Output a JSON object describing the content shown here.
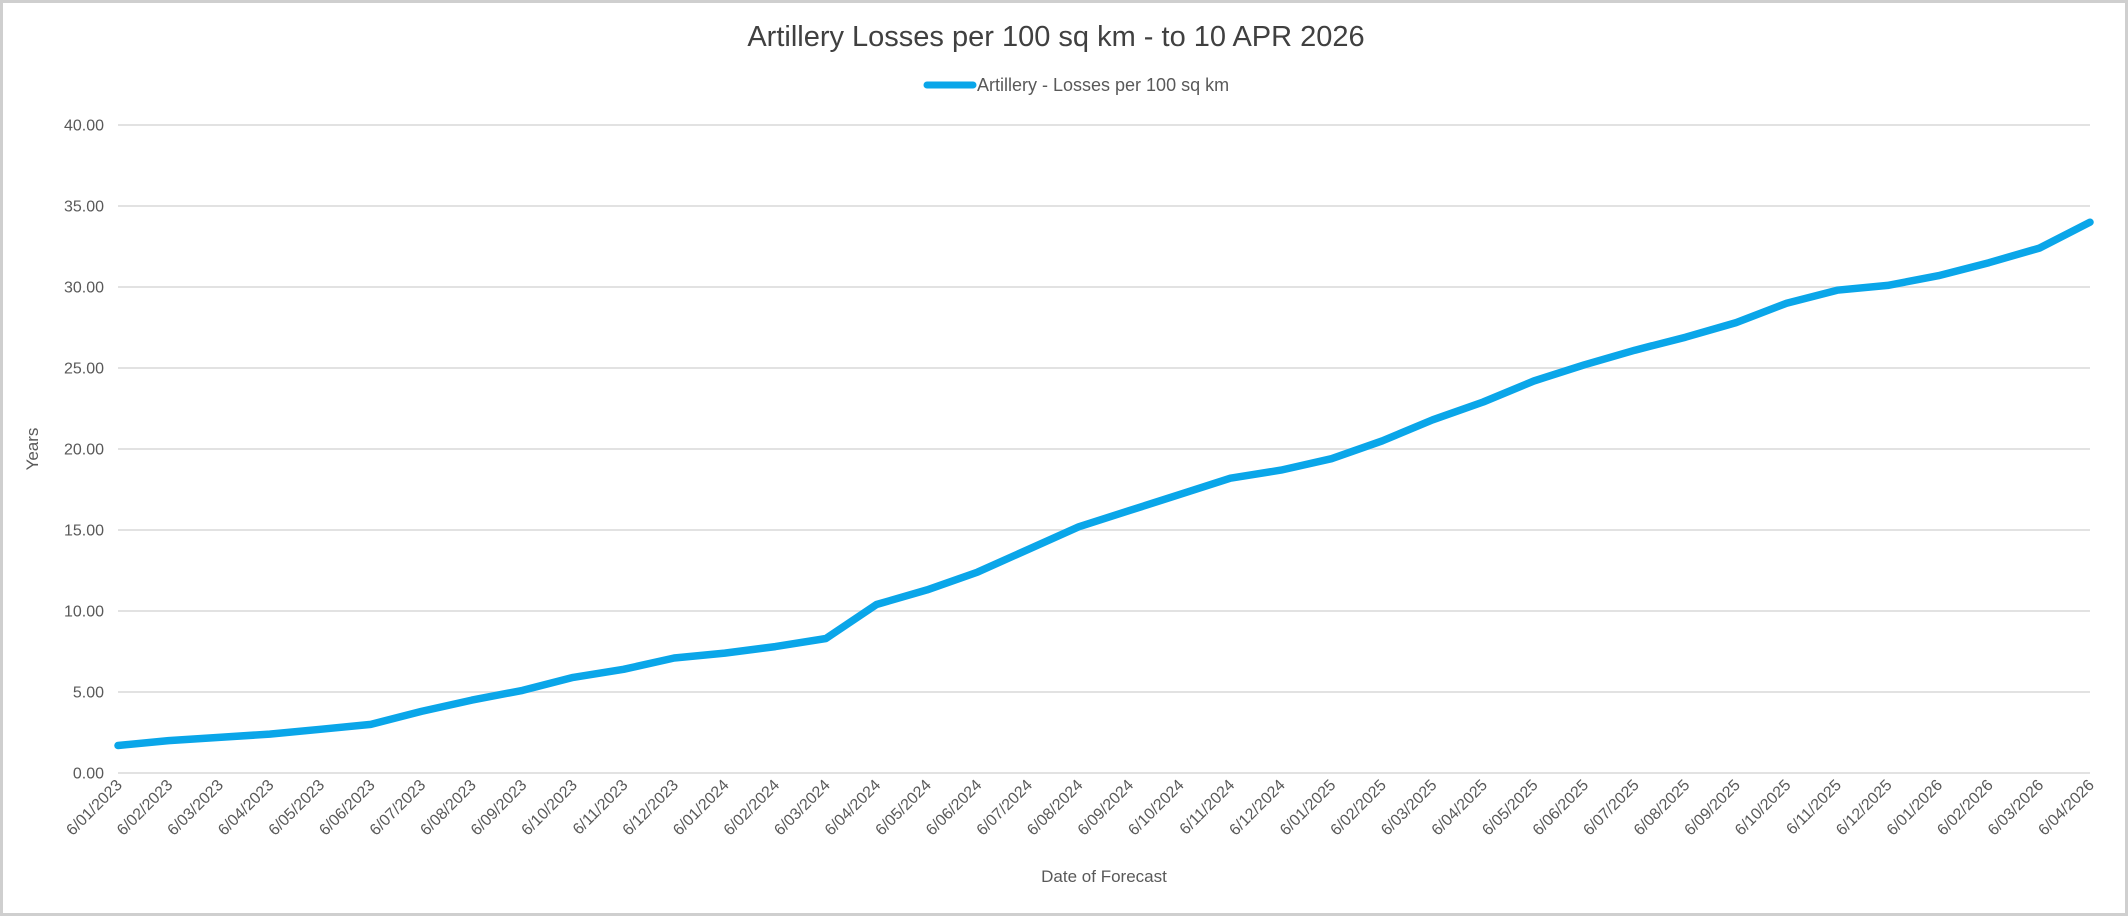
{
  "window": {
    "background": "#ffffff",
    "frame_border_color": "#cfcfcf"
  },
  "chart_data": {
    "type": "line",
    "title": "Artillery Losses per 100 sq km - to 10 APR 2026",
    "legend_entries": [
      {
        "label": "Artillery - Losses per 100 sq km",
        "color": "#0aa6e9"
      }
    ],
    "legend_position": "top-center",
    "xlabel": "Date of Forecast",
    "ylabel": "Years",
    "grid": "horizontal-only",
    "ylim": [
      0,
      40
    ],
    "y_ticks": [
      0,
      5,
      10,
      15,
      20,
      25,
      30,
      35,
      40
    ],
    "y_tick_labels": [
      "0.00",
      "5.00",
      "10.00",
      "15.00",
      "20.00",
      "25.00",
      "30.00",
      "35.00",
      "40.00"
    ],
    "x": [
      "6/01/2023",
      "6/02/2023",
      "6/03/2023",
      "6/04/2023",
      "6/05/2023",
      "6/06/2023",
      "6/07/2023",
      "6/08/2023",
      "6/09/2023",
      "6/10/2023",
      "6/11/2023",
      "6/12/2023",
      "6/01/2024",
      "6/02/2024",
      "6/03/2024",
      "6/04/2024",
      "6/05/2024",
      "6/06/2024",
      "6/07/2024",
      "6/08/2024",
      "6/09/2024",
      "6/10/2024",
      "6/11/2024",
      "6/12/2024",
      "6/01/2025",
      "6/02/2025",
      "6/03/2025",
      "6/04/2025",
      "6/05/2025",
      "6/06/2025",
      "6/07/2025",
      "6/08/2025",
      "6/09/2025",
      "6/10/2025",
      "6/11/2025",
      "6/12/2025",
      "6/01/2026",
      "6/02/2026",
      "6/03/2026",
      "6/04/2026"
    ],
    "series": [
      {
        "name": "Artillery - Losses per 100 sq km",
        "color": "#0aa6e9",
        "values": [
          1.7,
          2.0,
          2.2,
          2.4,
          2.7,
          3.0,
          3.8,
          4.5,
          5.1,
          5.9,
          6.4,
          7.1,
          7.4,
          7.8,
          8.3,
          10.4,
          11.3,
          12.4,
          13.8,
          15.2,
          16.2,
          17.2,
          18.2,
          18.7,
          19.4,
          20.5,
          21.8,
          22.9,
          24.2,
          25.2,
          26.1,
          26.9,
          27.8,
          29.0,
          29.8,
          30.1,
          30.7,
          31.5,
          32.4,
          34.0
        ]
      }
    ],
    "colors": {
      "line": "#0aa6e9",
      "gridline": "#d9d9d9",
      "tick_text": "#595959",
      "title_text": "#404040",
      "axis_title_text": "#595959",
      "frame_border": "#cfcfcf"
    }
  }
}
